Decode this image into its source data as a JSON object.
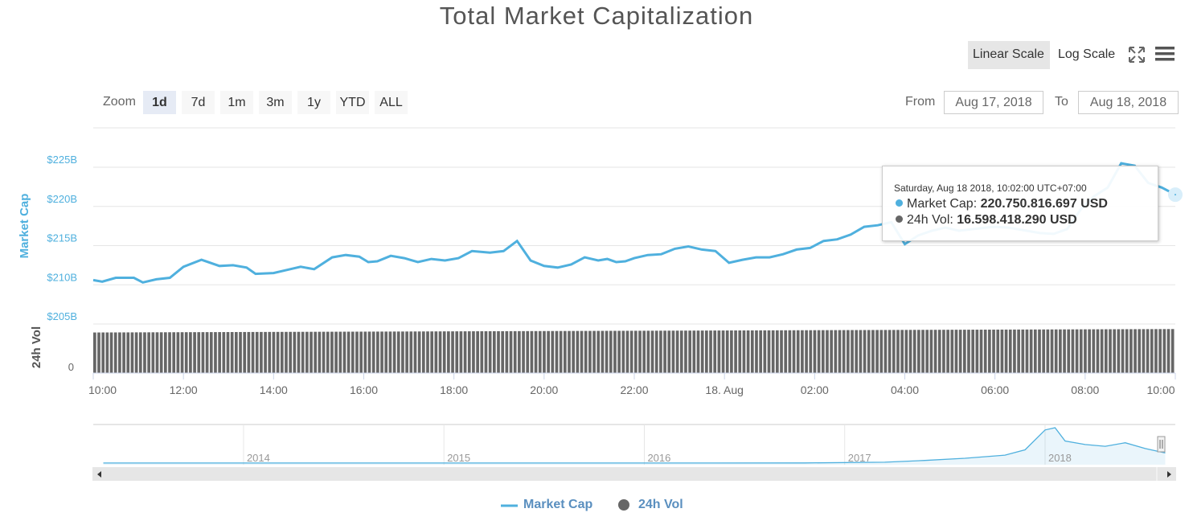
{
  "title": "Total Market Capitalization",
  "scale_buttons": {
    "linear": "Linear Scale",
    "log": "Log Scale"
  },
  "zoom": {
    "label": "Zoom",
    "buttons": [
      "1d",
      "7d",
      "1m",
      "3m",
      "1y",
      "YTD",
      "ALL"
    ],
    "active": "1d"
  },
  "range": {
    "from_label": "From",
    "from_value": "Aug 17, 2018",
    "to_label": "To",
    "to_value": "Aug 18, 2018"
  },
  "tooltip": {
    "header": "Saturday, Aug 18 2018, 10:02:00 UTC+07:00",
    "market_cap_label": "Market Cap",
    "market_cap_value": "220.750.816.697 USD",
    "vol_label": "24h Vol",
    "vol_value": "16.598.418.290 USD"
  },
  "legend": {
    "market_cap": "Market Cap",
    "vol": "24h Vol"
  },
  "colors": {
    "market_cap": "#4fb0de",
    "vol": "#666666",
    "grid": "#e6e6e6",
    "axis_label": "#4fb0de"
  },
  "chart_data": [
    {
      "type": "line",
      "title": "Total Market Capitalization",
      "ylabel": "Market Cap",
      "y_tick_labels": [
        "$205B",
        "$210B",
        "$215B",
        "$220B",
        "$225B"
      ],
      "ylim": [
        205,
        230
      ],
      "x_tick_labels": [
        "10:00",
        "12:00",
        "14:00",
        "16:00",
        "18:00",
        "20:00",
        "22:00",
        "18. Aug",
        "02:00",
        "04:00",
        "06:00",
        "08:00",
        "10:00"
      ],
      "xlim": [
        0,
        24
      ],
      "series": [
        {
          "name": "Market Cap",
          "x": [
            0,
            0.2,
            0.5,
            0.9,
            1.1,
            1.4,
            1.7,
            2.0,
            2.4,
            2.8,
            3.1,
            3.4,
            3.6,
            4.0,
            4.3,
            4.6,
            4.9,
            5.3,
            5.6,
            5.9,
            6.1,
            6.3,
            6.6,
            6.9,
            7.2,
            7.5,
            7.8,
            8.1,
            8.4,
            8.8,
            9.1,
            9.4,
            9.7,
            10.0,
            10.3,
            10.6,
            10.9,
            11.2,
            11.4,
            11.6,
            11.8,
            12.0,
            12.3,
            12.6,
            12.9,
            13.2,
            13.5,
            13.8,
            14.1,
            14.4,
            14.7,
            15.0,
            15.3,
            15.6,
            15.9,
            16.2,
            16.5,
            16.8,
            17.1,
            17.4,
            17.7,
            18.0,
            18.3,
            18.6,
            18.9,
            19.2,
            19.5,
            19.8,
            20.0,
            20.3,
            20.6,
            21.0,
            21.3,
            21.6,
            21.9,
            22.2,
            22.5,
            22.8,
            23.1,
            23.4,
            23.7,
            24.0
          ],
          "values": [
            210.6,
            210.4,
            210.9,
            210.9,
            210.3,
            210.7,
            210.9,
            212.3,
            213.2,
            212.4,
            212.5,
            212.2,
            211.4,
            211.5,
            211.9,
            212.3,
            212.0,
            213.5,
            213.8,
            213.6,
            212.9,
            213.0,
            213.7,
            213.4,
            212.9,
            213.3,
            213.1,
            213.4,
            214.3,
            214.1,
            214.3,
            215.6,
            213.1,
            212.4,
            212.2,
            212.6,
            213.5,
            213.1,
            213.3,
            212.9,
            213.0,
            213.4,
            213.8,
            213.9,
            214.6,
            214.9,
            214.5,
            214.3,
            212.8,
            213.2,
            213.5,
            213.5,
            213.9,
            214.5,
            214.7,
            215.6,
            215.8,
            216.4,
            217.4,
            217.6,
            218.0,
            215.2,
            216.3,
            216.9,
            217.3,
            216.9,
            217.1,
            217.3,
            217.4,
            217.3,
            217.0,
            216.6,
            216.5,
            217.1,
            219.6,
            221.3,
            222.4,
            225.5,
            225.2,
            223.0,
            222.4,
            221.5
          ]
        },
        {
          "name": "24h Vol",
          "note": "volume bars rising slightly across the day",
          "y_tick_labels": [
            "0"
          ],
          "ylabel": "24h Vol",
          "start_value": 15.3,
          "end_value": 16.6,
          "max_value": 18.5,
          "unit": "B USD"
        }
      ]
    },
    {
      "type": "area",
      "x_tick_labels": [
        "2014",
        "2015",
        "2016",
        "2017",
        "2018"
      ],
      "x": [
        2013.3,
        2014,
        2015,
        2016,
        2016.8,
        2017.2,
        2017.4,
        2017.6,
        2017.8,
        2017.9,
        2018.0,
        2018.05,
        2018.1,
        2018.2,
        2018.3,
        2018.4,
        2018.5,
        2018.6
      ],
      "values": [
        2,
        2,
        1,
        1,
        3,
        20,
        60,
        110,
        180,
        300,
        750,
        800,
        500,
        420,
        380,
        460,
        330,
        230
      ]
    }
  ]
}
